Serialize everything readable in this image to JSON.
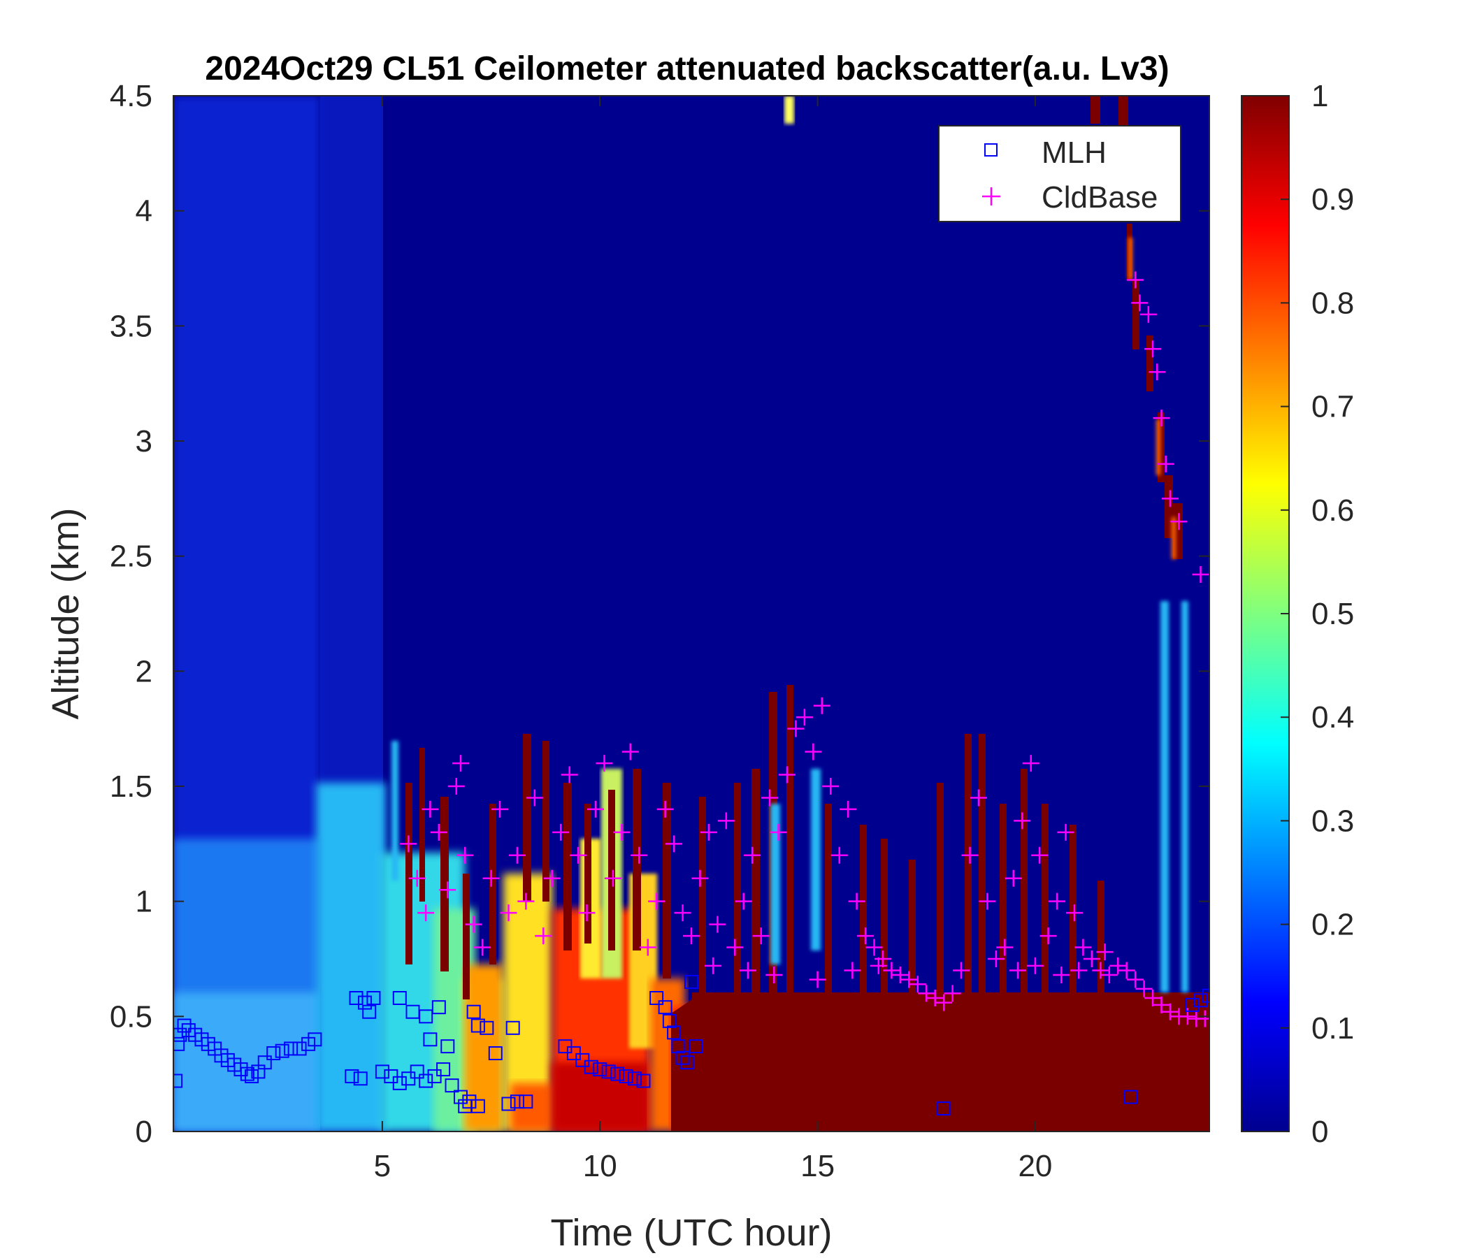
{
  "chart_data": {
    "type": "heatmap",
    "title": "2024Oct29 CL51 Ceilometer attenuated backscatter(a.u. Lv3)",
    "xlabel": "Time (UTC hour)",
    "ylabel": "Altitude (km)",
    "xlim": [
      0.2,
      24
    ],
    "ylim": [
      0,
      4.5
    ],
    "x_ticks": [
      "5",
      "10",
      "15",
      "20"
    ],
    "y_ticks": [
      "0",
      "0.5",
      "1",
      "1.5",
      "2",
      "2.5",
      "3",
      "3.5",
      "4",
      "4.5"
    ],
    "colorbar": {
      "colormap": "jet",
      "limits": [
        0,
        1
      ],
      "ticks": [
        "0",
        "0.1",
        "0.2",
        "0.3",
        "0.4",
        "0.5",
        "0.6",
        "0.7",
        "0.8",
        "0.9",
        "1"
      ]
    },
    "legend": {
      "position": "top-right",
      "entries": [
        {
          "name": "MLH",
          "marker": "square",
          "color": "#0000ff"
        },
        {
          "name": "CldBase",
          "marker": "plus",
          "color": "#ff00ff"
        }
      ]
    },
    "series": [
      {
        "name": "MLH",
        "points": [
          [
            0.25,
            0.22
          ],
          [
            0.3,
            0.38
          ],
          [
            0.35,
            0.42
          ],
          [
            0.45,
            0.46
          ],
          [
            0.55,
            0.44
          ],
          [
            0.7,
            0.42
          ],
          [
            0.85,
            0.4
          ],
          [
            1.0,
            0.38
          ],
          [
            1.15,
            0.36
          ],
          [
            1.3,
            0.33
          ],
          [
            1.45,
            0.31
          ],
          [
            1.6,
            0.29
          ],
          [
            1.75,
            0.27
          ],
          [
            1.9,
            0.25
          ],
          [
            2.0,
            0.24
          ],
          [
            2.15,
            0.26
          ],
          [
            2.3,
            0.3
          ],
          [
            2.5,
            0.34
          ],
          [
            2.7,
            0.35
          ],
          [
            2.9,
            0.36
          ],
          [
            3.1,
            0.36
          ],
          [
            3.3,
            0.38
          ],
          [
            3.45,
            0.4
          ],
          [
            4.3,
            0.24
          ],
          [
            4.5,
            0.23
          ],
          [
            4.4,
            0.58
          ],
          [
            4.6,
            0.56
          ],
          [
            4.7,
            0.52
          ],
          [
            4.8,
            0.58
          ],
          [
            5.0,
            0.26
          ],
          [
            5.2,
            0.24
          ],
          [
            5.4,
            0.21
          ],
          [
            5.6,
            0.23
          ],
          [
            5.8,
            0.26
          ],
          [
            6.0,
            0.22
          ],
          [
            6.2,
            0.24
          ],
          [
            6.4,
            0.27
          ],
          [
            5.4,
            0.58
          ],
          [
            5.7,
            0.52
          ],
          [
            6.0,
            0.5
          ],
          [
            6.3,
            0.54
          ],
          [
            6.1,
            0.4
          ],
          [
            6.5,
            0.37
          ],
          [
            6.6,
            0.2
          ],
          [
            6.8,
            0.15
          ],
          [
            6.9,
            0.11
          ],
          [
            7.0,
            0.13
          ],
          [
            7.2,
            0.11
          ],
          [
            7.1,
            0.52
          ],
          [
            7.2,
            0.46
          ],
          [
            7.4,
            0.45
          ],
          [
            7.6,
            0.34
          ],
          [
            8.0,
            0.45
          ],
          [
            7.9,
            0.12
          ],
          [
            8.1,
            0.13
          ],
          [
            8.3,
            0.13
          ],
          [
            9.2,
            0.37
          ],
          [
            9.4,
            0.34
          ],
          [
            9.6,
            0.31
          ],
          [
            9.8,
            0.28
          ],
          [
            10.0,
            0.27
          ],
          [
            10.2,
            0.26
          ],
          [
            10.4,
            0.25
          ],
          [
            10.6,
            0.24
          ],
          [
            10.8,
            0.23
          ],
          [
            11.0,
            0.22
          ],
          [
            11.3,
            0.58
          ],
          [
            11.5,
            0.54
          ],
          [
            11.6,
            0.48
          ],
          [
            11.7,
            0.43
          ],
          [
            11.8,
            0.37
          ],
          [
            11.9,
            0.32
          ],
          [
            12.0,
            0.3
          ],
          [
            12.2,
            0.37
          ],
          [
            12.1,
            0.65
          ],
          [
            17.9,
            0.1
          ],
          [
            22.2,
            0.15
          ],
          [
            23.6,
            0.55
          ],
          [
            23.8,
            0.57
          ],
          [
            24.0,
            0.59
          ]
        ]
      },
      {
        "name": "CldBase",
        "points": [
          [
            5.6,
            1.25
          ],
          [
            5.8,
            1.1
          ],
          [
            6.0,
            0.95
          ],
          [
            6.1,
            1.4
          ],
          [
            6.3,
            1.3
          ],
          [
            6.5,
            1.05
          ],
          [
            6.7,
            1.5
          ],
          [
            6.8,
            1.6
          ],
          [
            6.9,
            1.2
          ],
          [
            7.1,
            0.9
          ],
          [
            7.3,
            0.8
          ],
          [
            7.5,
            1.1
          ],
          [
            7.7,
            1.4
          ],
          [
            7.9,
            0.95
          ],
          [
            8.1,
            1.2
          ],
          [
            8.3,
            1.0
          ],
          [
            8.5,
            1.45
          ],
          [
            8.7,
            0.85
          ],
          [
            8.9,
            1.1
          ],
          [
            9.1,
            1.3
          ],
          [
            9.3,
            1.55
          ],
          [
            9.5,
            1.2
          ],
          [
            9.7,
            0.95
          ],
          [
            9.9,
            1.4
          ],
          [
            10.1,
            1.6
          ],
          [
            10.3,
            1.1
          ],
          [
            10.5,
            1.3
          ],
          [
            10.7,
            1.65
          ],
          [
            10.9,
            1.2
          ],
          [
            11.1,
            0.8
          ],
          [
            11.3,
            1.0
          ],
          [
            11.5,
            1.4
          ],
          [
            11.7,
            1.25
          ],
          [
            11.9,
            0.95
          ],
          [
            12.1,
            0.85
          ],
          [
            12.3,
            1.1
          ],
          [
            12.5,
            1.3
          ],
          [
            12.7,
            0.9
          ],
          [
            12.9,
            1.35
          ],
          [
            13.1,
            0.8
          ],
          [
            13.3,
            1.0
          ],
          [
            13.5,
            1.2
          ],
          [
            13.7,
            0.85
          ],
          [
            13.9,
            1.45
          ],
          [
            14.1,
            1.3
          ],
          [
            14.3,
            1.55
          ],
          [
            14.5,
            1.75
          ],
          [
            14.7,
            1.8
          ],
          [
            14.9,
            1.65
          ],
          [
            15.1,
            1.85
          ],
          [
            15.3,
            1.5
          ],
          [
            15.5,
            1.2
          ],
          [
            15.7,
            1.4
          ],
          [
            15.9,
            1.0
          ],
          [
            16.1,
            0.85
          ],
          [
            16.3,
            0.8
          ],
          [
            16.5,
            0.75
          ],
          [
            16.7,
            0.7
          ],
          [
            16.9,
            0.68
          ],
          [
            17.1,
            0.66
          ],
          [
            17.3,
            0.64
          ],
          [
            17.5,
            0.6
          ],
          [
            17.7,
            0.58
          ],
          [
            17.9,
            0.56
          ],
          [
            18.1,
            0.6
          ],
          [
            18.3,
            0.7
          ],
          [
            18.5,
            1.2
          ],
          [
            18.7,
            1.45
          ],
          [
            18.9,
            1.0
          ],
          [
            19.1,
            0.75
          ],
          [
            19.3,
            0.8
          ],
          [
            19.5,
            1.1
          ],
          [
            19.7,
            1.35
          ],
          [
            19.9,
            1.6
          ],
          [
            20.1,
            1.2
          ],
          [
            20.3,
            0.85
          ],
          [
            20.5,
            1.0
          ],
          [
            20.7,
            1.3
          ],
          [
            20.9,
            0.95
          ],
          [
            21.1,
            0.8
          ],
          [
            21.3,
            0.75
          ],
          [
            21.5,
            0.7
          ],
          [
            21.7,
            0.68
          ],
          [
            21.9,
            0.72
          ],
          [
            22.1,
            0.7
          ],
          [
            22.3,
            0.66
          ],
          [
            22.5,
            0.62
          ],
          [
            22.7,
            0.58
          ],
          [
            22.9,
            0.55
          ],
          [
            23.1,
            0.52
          ],
          [
            23.3,
            0.5
          ],
          [
            23.5,
            0.5
          ],
          [
            23.7,
            0.49
          ],
          [
            23.9,
            0.49
          ],
          [
            22.3,
            3.7
          ],
          [
            22.4,
            3.6
          ],
          [
            22.6,
            3.55
          ],
          [
            22.7,
            3.4
          ],
          [
            22.8,
            3.3
          ],
          [
            22.9,
            3.1
          ],
          [
            23.0,
            2.9
          ],
          [
            23.1,
            2.75
          ],
          [
            23.3,
            2.65
          ],
          [
            23.8,
            2.42
          ],
          [
            12.6,
            0.72
          ],
          [
            13.4,
            0.7
          ],
          [
            14.0,
            0.68
          ],
          [
            15.0,
            0.66
          ],
          [
            15.8,
            0.7
          ],
          [
            16.4,
            0.72
          ],
          [
            19.6,
            0.7
          ],
          [
            20.0,
            0.72
          ],
          [
            20.6,
            0.68
          ],
          [
            21.0,
            0.7
          ],
          [
            21.6,
            0.78
          ]
        ]
      }
    ]
  }
}
